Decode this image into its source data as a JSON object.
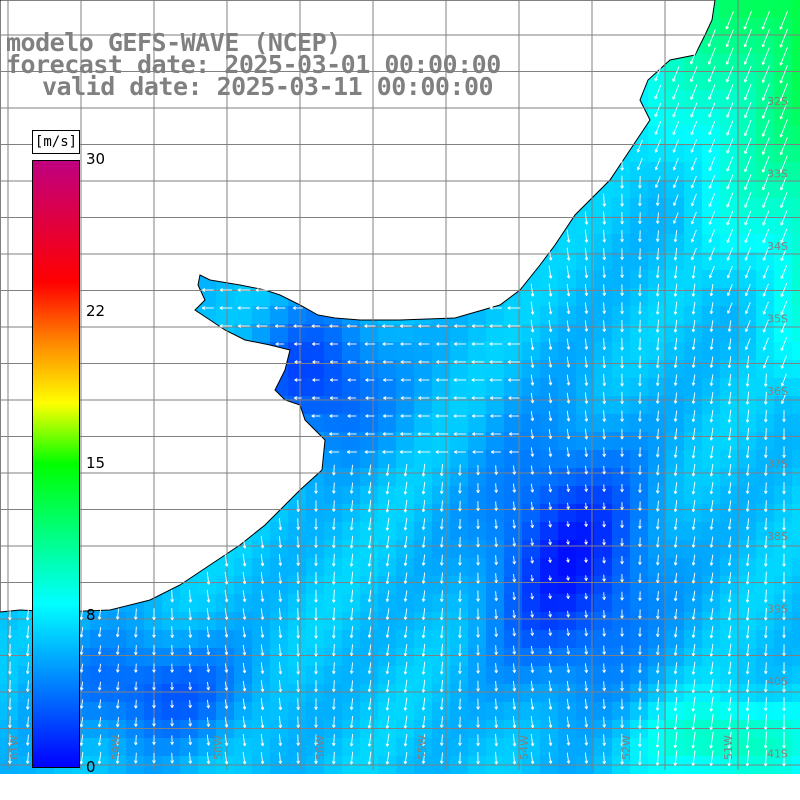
{
  "title": {
    "line1": "modelo GEFS-WAVE (NCEP)",
    "line2": "forecast date: 2025-03-01 00:00:00",
    "line3": "valid date: 2025-03-11 00:00:00"
  },
  "colorbar": {
    "unit": "[m/s]",
    "ticks": [
      "30",
      "22",
      "15",
      "8",
      "0"
    ],
    "min": 0,
    "max": 30
  },
  "lat_labels": [
    "32S",
    "33S",
    "34S",
    "35S",
    "36S",
    "37S",
    "38S",
    "39S",
    "40S",
    "41S"
  ],
  "lon_labels": [
    "61W",
    "59W",
    "58W",
    "56W",
    "55W",
    "54W",
    "52W",
    "51W"
  ],
  "colors": {
    "land": "#ffffff",
    "coast": "#000000",
    "grid": "#808080",
    "arrow": "#ffffff",
    "title": "#808080"
  }
}
